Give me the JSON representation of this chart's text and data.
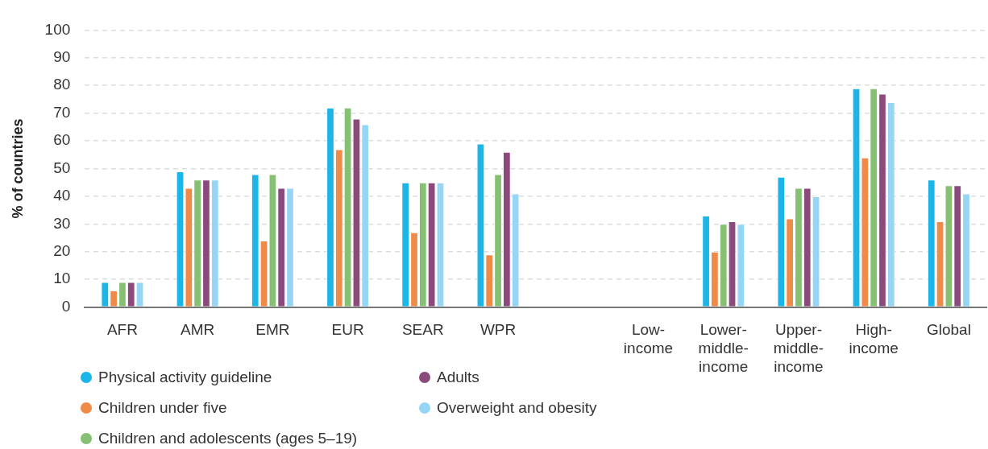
{
  "chart_data": {
    "type": "bar",
    "ylabel": "% of countries",
    "categories": [
      "AFR",
      "AMR",
      "EMR",
      "EUR",
      "SEAR",
      "WPR",
      null,
      "Low-income",
      "Lower-middle-income",
      "Upper-middle-income",
      "High-income",
      "Global"
    ],
    "series": [
      {
        "name": "Physical activity guideline",
        "color": "#1cb5e8",
        "values": [
          9,
          49,
          48,
          72,
          45,
          59,
          null,
          null,
          33,
          47,
          79,
          46
        ]
      },
      {
        "name": "Children under five",
        "color": "#f08a48",
        "values": [
          6,
          43,
          24,
          57,
          27,
          19,
          null,
          null,
          20,
          32,
          54,
          31
        ]
      },
      {
        "name": "Children and adolescents (ages 5–19)",
        "color": "#85c073",
        "values": [
          9,
          46,
          48,
          72,
          45,
          48,
          null,
          null,
          30,
          43,
          79,
          44
        ]
      },
      {
        "name": "Adults",
        "color": "#8c4a7c",
        "values": [
          9,
          46,
          43,
          68,
          45,
          56,
          null,
          null,
          31,
          43,
          77,
          44
        ]
      },
      {
        "name": "Overweight and obesity",
        "color": "#97d5f5",
        "values": [
          9,
          46,
          43,
          66,
          45,
          41,
          null,
          null,
          30,
          40,
          74,
          41
        ]
      }
    ],
    "ylim": [
      0,
      100
    ],
    "yticks": [
      0,
      10,
      20,
      30,
      40,
      50,
      60,
      70,
      80,
      90,
      100
    ],
    "grid": "y",
    "legend": "bottom left"
  }
}
